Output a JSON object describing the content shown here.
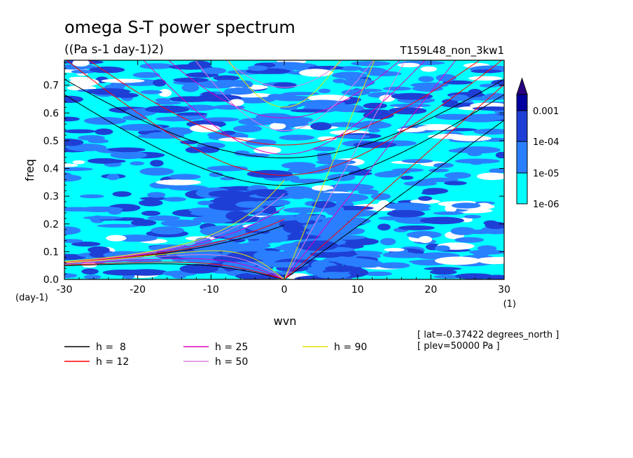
{
  "chart_data": {
    "type": "heatmap",
    "title": "omega S-T power spectrum",
    "subtitle": "((Pa s-1 day-1)2)",
    "run_label": "T159L48_non_3kw1",
    "xlabel": "wvn",
    "ylabel": "freq",
    "x_unit": "(1)",
    "y_unit": "(day-1)",
    "xlim": [
      -30,
      30
    ],
    "ylim": [
      0,
      0.79
    ],
    "x_ticks": [
      -30,
      -20,
      -10,
      0,
      10,
      20,
      30
    ],
    "x_tick_labels": [
      "-30",
      "-20",
      "-10",
      "0",
      "10",
      "20",
      "30"
    ],
    "y_ticks": [
      0,
      0.1,
      0.2,
      0.3,
      0.4,
      0.5,
      0.6,
      0.7
    ],
    "y_tick_labels": [
      "0.0",
      "0.1",
      "0.2",
      "0.3",
      "0.4",
      "0.5",
      "0.6",
      "0.7"
    ],
    "colorbar": {
      "levels": [
        1e-06,
        1e-05,
        0.0001,
        0.001
      ],
      "labels": [
        "1e-06",
        "1e-05",
        "1e-04",
        "0.001"
      ],
      "colors": [
        "#00ffff",
        "#2a7fff",
        "#1e3fd6",
        "#0000a0",
        "#2a0080"
      ]
    },
    "background_color": "#00ffff",
    "below_min_color": "#ffffff",
    "series": [
      {
        "name": "h =  8",
        "h": 8,
        "color": "#000000"
      },
      {
        "name": "h = 12",
        "h": 12,
        "color": "#ff0000"
      },
      {
        "name": "h = 25",
        "h": 25,
        "color": "#e000c0"
      },
      {
        "name": "h = 50",
        "h": 50,
        "color": "#e080e0"
      },
      {
        "name": "h = 90",
        "h": 90,
        "color": "#e8e000"
      }
    ],
    "annotations": [
      "[ lat=-0.37422 degrees_north ]",
      "[ plev=50000 Pa ]"
    ]
  }
}
